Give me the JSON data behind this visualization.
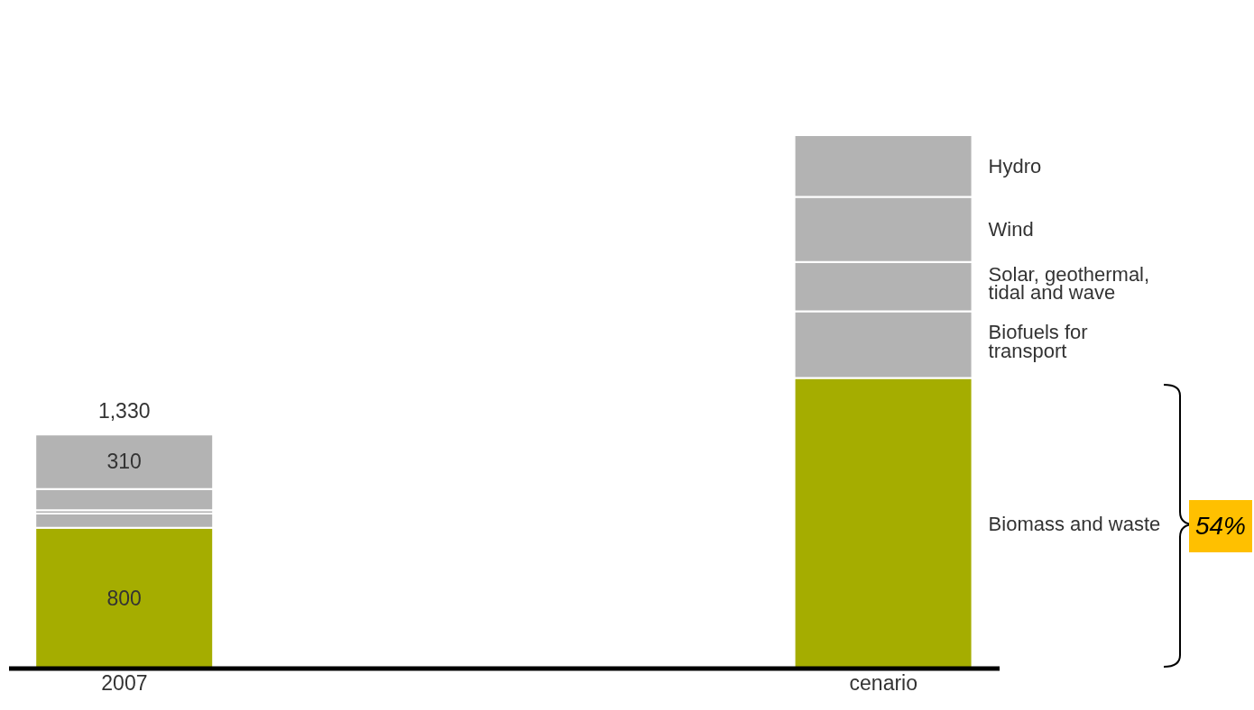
{
  "chart_data": {
    "type": "bar",
    "stacked": true,
    "categories": [
      "2007",
      "cenario"
    ],
    "series": [
      {
        "name": "Biomass and waste",
        "color": "#a5ad00",
        "values": [
          800,
          1650
        ],
        "value_labels": [
          "800",
          null
        ]
      },
      {
        "name": "Biofuels for transport",
        "color": "#b3b3b3",
        "values": [
          80,
          380
        ],
        "value_labels": [
          null,
          null
        ]
      },
      {
        "name": "Solar, geothermal, tidal and wave",
        "color": "#b3b3b3",
        "values": [
          20,
          280
        ],
        "value_labels": [
          null,
          null
        ]
      },
      {
        "name": "Wind",
        "color": "#b3b3b3",
        "values": [
          120,
          370
        ],
        "value_labels": [
          null,
          null
        ]
      },
      {
        "name": "Hydro",
        "color": "#b3b3b3",
        "values": [
          310,
          350
        ],
        "value_labels": [
          "310",
          null
        ]
      }
    ],
    "totals": [
      "1,330",
      null
    ],
    "annotations": [
      "54%"
    ]
  }
}
